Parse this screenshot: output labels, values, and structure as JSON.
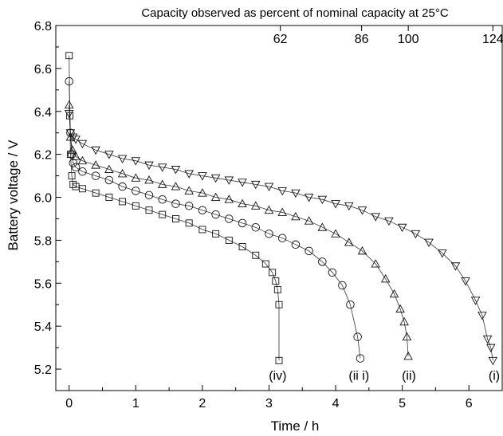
{
  "chart_data": {
    "type": "line",
    "title": "Capacity observed as percent of nominal capacity at 25°C",
    "xlabel": "Time / h",
    "ylabel": "Battery voltage / V",
    "xlim": [
      -0.2,
      6.5
    ],
    "ylim": [
      5.1,
      6.8
    ],
    "x_ticks": [
      "0",
      "1",
      "2",
      "3",
      "4",
      "5",
      "6"
    ],
    "y_ticks": [
      "5.2",
      "5.4",
      "5.6",
      "5.8",
      "6.0",
      "6.2",
      "6.4",
      "6.6",
      "6.8"
    ],
    "top_axis": {
      "ticks": [
        {
          "x": 3.17,
          "label": "62"
        },
        {
          "x": 4.39,
          "label": "86"
        },
        {
          "x": 5.09,
          "label": "100"
        },
        {
          "x": 6.36,
          "label": "124"
        }
      ]
    },
    "grid": false,
    "series": [
      {
        "name": "(iv)",
        "marker": "square",
        "points": [
          [
            0.0,
            6.66
          ],
          [
            0.01,
            6.38
          ],
          [
            0.02,
            6.2
          ],
          [
            0.04,
            6.1
          ],
          [
            0.06,
            6.06
          ],
          [
            0.1,
            6.05
          ],
          [
            0.2,
            6.04
          ],
          [
            0.4,
            6.02
          ],
          [
            0.6,
            6.0
          ],
          [
            0.8,
            5.98
          ],
          [
            1.0,
            5.96
          ],
          [
            1.2,
            5.94
          ],
          [
            1.4,
            5.92
          ],
          [
            1.6,
            5.9
          ],
          [
            1.8,
            5.88
          ],
          [
            2.0,
            5.85
          ],
          [
            2.2,
            5.83
          ],
          [
            2.4,
            5.8
          ],
          [
            2.6,
            5.77
          ],
          [
            2.8,
            5.73
          ],
          [
            2.95,
            5.69
          ],
          [
            3.05,
            5.65
          ],
          [
            3.1,
            5.61
          ],
          [
            3.13,
            5.57
          ],
          [
            3.15,
            5.5
          ],
          [
            3.15,
            5.24
          ]
        ]
      },
      {
        "name": "(ii i)",
        "marker": "circle",
        "points": [
          [
            0.0,
            6.54
          ],
          [
            0.02,
            6.3
          ],
          [
            0.04,
            6.2
          ],
          [
            0.06,
            6.16
          ],
          [
            0.1,
            6.14
          ],
          [
            0.2,
            6.12
          ],
          [
            0.4,
            6.1
          ],
          [
            0.6,
            6.08
          ],
          [
            0.8,
            6.05
          ],
          [
            1.0,
            6.03
          ],
          [
            1.2,
            6.01
          ],
          [
            1.4,
            5.99
          ],
          [
            1.6,
            5.97
          ],
          [
            1.8,
            5.96
          ],
          [
            2.0,
            5.94
          ],
          [
            2.2,
            5.92
          ],
          [
            2.4,
            5.9
          ],
          [
            2.6,
            5.88
          ],
          [
            2.8,
            5.86
          ],
          [
            3.0,
            5.83
          ],
          [
            3.2,
            5.81
          ],
          [
            3.4,
            5.78
          ],
          [
            3.6,
            5.75
          ],
          [
            3.8,
            5.7
          ],
          [
            3.95,
            5.65
          ],
          [
            4.1,
            5.59
          ],
          [
            4.22,
            5.5
          ],
          [
            4.33,
            5.35
          ],
          [
            4.37,
            5.25
          ]
        ]
      },
      {
        "name": "(ii)",
        "marker": "triangle-up",
        "points": [
          [
            0.0,
            6.43
          ],
          [
            0.02,
            6.28
          ],
          [
            0.05,
            6.22
          ],
          [
            0.1,
            6.19
          ],
          [
            0.2,
            6.17
          ],
          [
            0.4,
            6.15
          ],
          [
            0.6,
            6.13
          ],
          [
            0.8,
            6.11
          ],
          [
            1.0,
            6.09
          ],
          [
            1.2,
            6.08
          ],
          [
            1.4,
            6.06
          ],
          [
            1.6,
            6.05
          ],
          [
            1.8,
            6.03
          ],
          [
            2.0,
            6.02
          ],
          [
            2.2,
            6.0
          ],
          [
            2.4,
            5.99
          ],
          [
            2.6,
            5.97
          ],
          [
            2.8,
            5.96
          ],
          [
            3.0,
            5.94
          ],
          [
            3.2,
            5.93
          ],
          [
            3.4,
            5.91
          ],
          [
            3.6,
            5.89
          ],
          [
            3.8,
            5.86
          ],
          [
            4.0,
            5.83
          ],
          [
            4.2,
            5.79
          ],
          [
            4.4,
            5.75
          ],
          [
            4.6,
            5.69
          ],
          [
            4.75,
            5.62
          ],
          [
            4.88,
            5.55
          ],
          [
            4.97,
            5.48
          ],
          [
            5.03,
            5.42
          ],
          [
            5.07,
            5.35
          ],
          [
            5.09,
            5.26
          ]
        ]
      },
      {
        "name": "(i)",
        "marker": "triangle-down",
        "points": [
          [
            0.0,
            6.39
          ],
          [
            0.02,
            6.3
          ],
          [
            0.06,
            6.28
          ],
          [
            0.1,
            6.27
          ],
          [
            0.2,
            6.25
          ],
          [
            0.4,
            6.22
          ],
          [
            0.6,
            6.2
          ],
          [
            0.8,
            6.18
          ],
          [
            1.0,
            6.17
          ],
          [
            1.2,
            6.15
          ],
          [
            1.4,
            6.14
          ],
          [
            1.6,
            6.13
          ],
          [
            1.8,
            6.11
          ],
          [
            2.0,
            6.1
          ],
          [
            2.2,
            6.09
          ],
          [
            2.4,
            6.08
          ],
          [
            2.6,
            6.07
          ],
          [
            2.8,
            6.06
          ],
          [
            3.0,
            6.05
          ],
          [
            3.2,
            6.03
          ],
          [
            3.4,
            6.02
          ],
          [
            3.6,
            6.0
          ],
          [
            3.8,
            5.99
          ],
          [
            4.0,
            5.97
          ],
          [
            4.2,
            5.96
          ],
          [
            4.4,
            5.94
          ],
          [
            4.6,
            5.91
          ],
          [
            4.8,
            5.89
          ],
          [
            5.0,
            5.86
          ],
          [
            5.2,
            5.83
          ],
          [
            5.4,
            5.79
          ],
          [
            5.6,
            5.74
          ],
          [
            5.8,
            5.68
          ],
          [
            5.95,
            5.61
          ],
          [
            6.1,
            5.52
          ],
          [
            6.2,
            5.45
          ],
          [
            6.28,
            5.34
          ],
          [
            6.33,
            5.3
          ],
          [
            6.36,
            5.24
          ]
        ]
      }
    ],
    "curve_labels": [
      {
        "x": 3.13,
        "y": 5.15,
        "label": "(iv)"
      },
      {
        "x": 4.35,
        "y": 5.15,
        "label": "(ii i)"
      },
      {
        "x": 5.1,
        "y": 5.15,
        "label": "(ii)"
      },
      {
        "x": 6.38,
        "y": 5.15,
        "label": "(i)"
      }
    ]
  }
}
